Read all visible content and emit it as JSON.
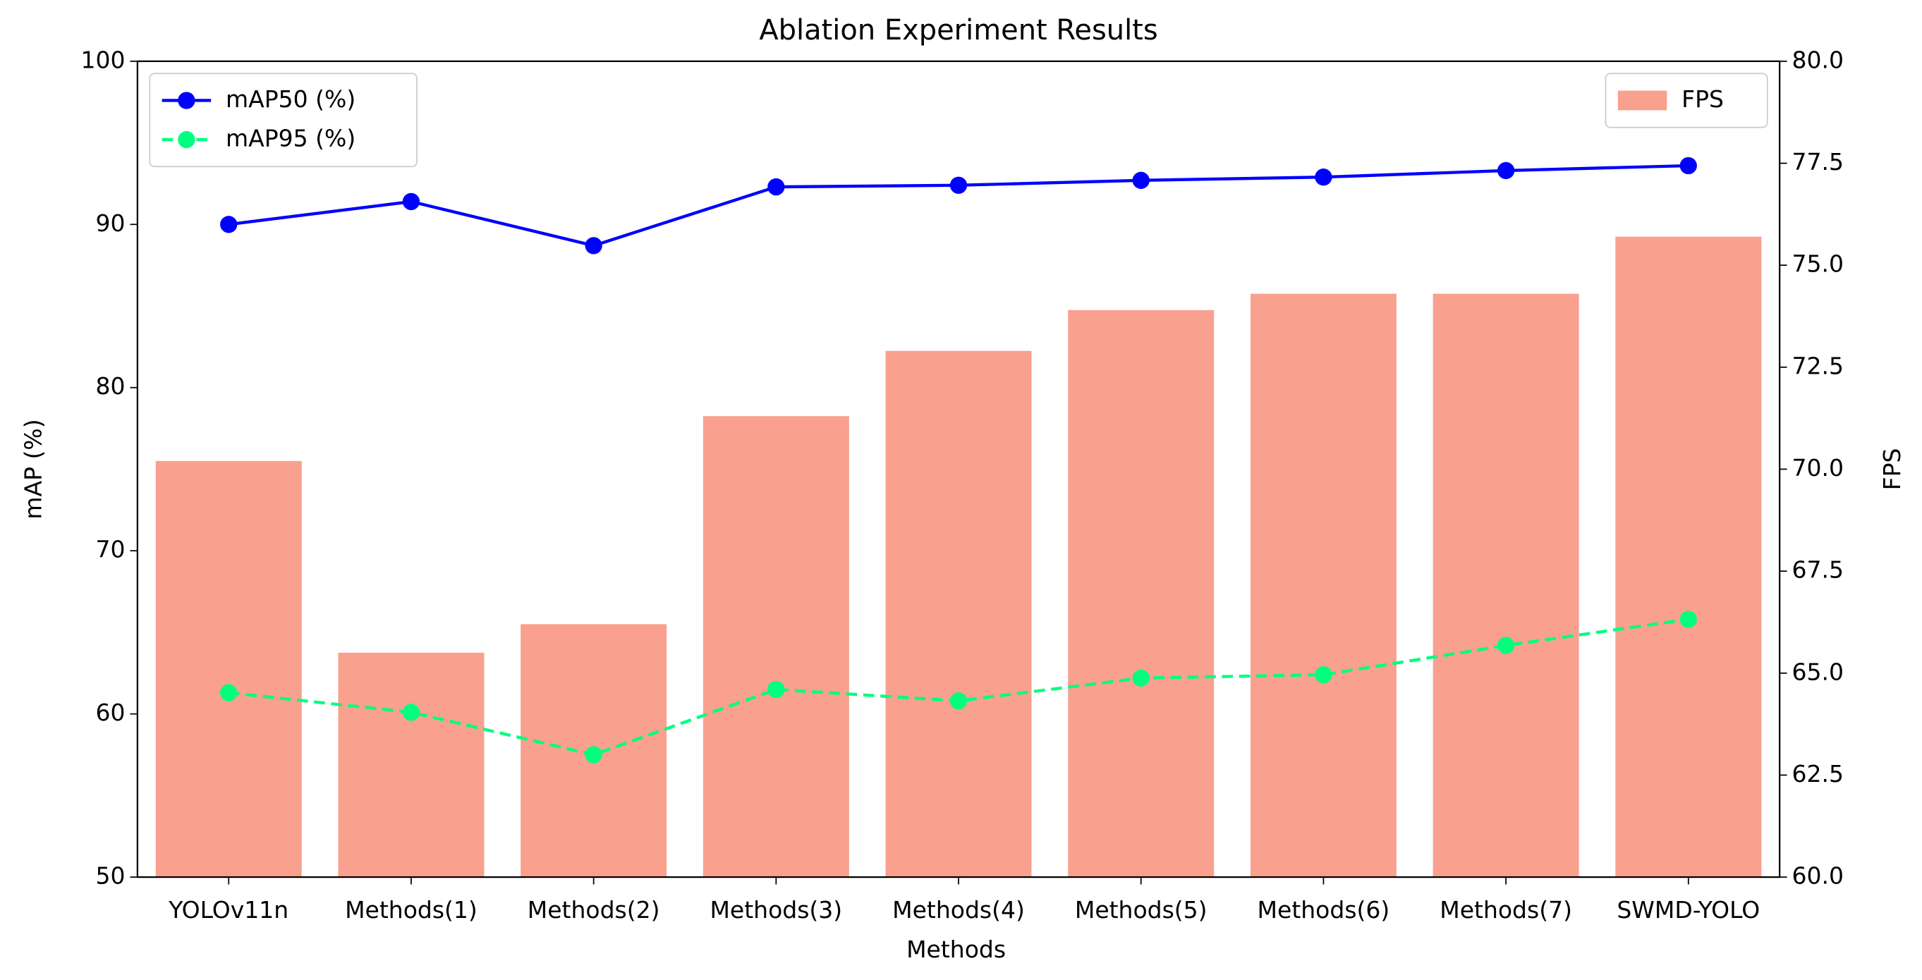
{
  "chart_data": {
    "type": "bar",
    "title": "Ablation Experiment Results",
    "xlabel": "Methods",
    "ylabel": "mAP (%)",
    "y2label": "FPS",
    "categories": [
      "YOLOv11n",
      "Methods(1)",
      "Methods(2)",
      "Methods(3)",
      "Methods(4)",
      "Methods(5)",
      "Methods(6)",
      "Methods(7)",
      "SWMD-YOLO"
    ],
    "series": [
      {
        "name": "FPS",
        "type": "bar",
        "axis": "y2",
        "color": "#f9a08e",
        "values": [
          70.2,
          65.5,
          66.2,
          71.3,
          72.9,
          73.9,
          74.3,
          74.3,
          75.7
        ]
      },
      {
        "name": "mAP50 (%)",
        "type": "line",
        "linestyle": "solid",
        "color": "#0000ff",
        "values": [
          90.0,
          91.4,
          88.7,
          92.3,
          92.4,
          92.7,
          92.9,
          93.3,
          93.6
        ]
      },
      {
        "name": "mAP95 (%)",
        "type": "line",
        "linestyle": "dashed",
        "color": "#00ff7f",
        "values": [
          61.3,
          60.1,
          57.5,
          61.5,
          60.8,
          62.2,
          62.4,
          64.2,
          65.8
        ]
      }
    ],
    "ylim": [
      50,
      100
    ],
    "yticks": [
      50,
      60,
      70,
      80,
      90,
      100
    ],
    "y2lim": [
      60,
      80
    ],
    "y2ticks": [
      {
        "value": 60,
        "label": "60.0"
      },
      {
        "value": 62.5,
        "label": "62.5"
      },
      {
        "value": 65,
        "label": "65.0"
      },
      {
        "value": 67.5,
        "label": "67.5"
      },
      {
        "value": 70,
        "label": "70.0"
      },
      {
        "value": 72.5,
        "label": "72.5"
      },
      {
        "value": 75,
        "label": "75.0"
      },
      {
        "value": 77.5,
        "label": "77.5"
      },
      {
        "value": 80,
        "label": "80.0"
      }
    ],
    "legend": "upper left",
    "legend_y2": "upper right",
    "grid": false
  }
}
